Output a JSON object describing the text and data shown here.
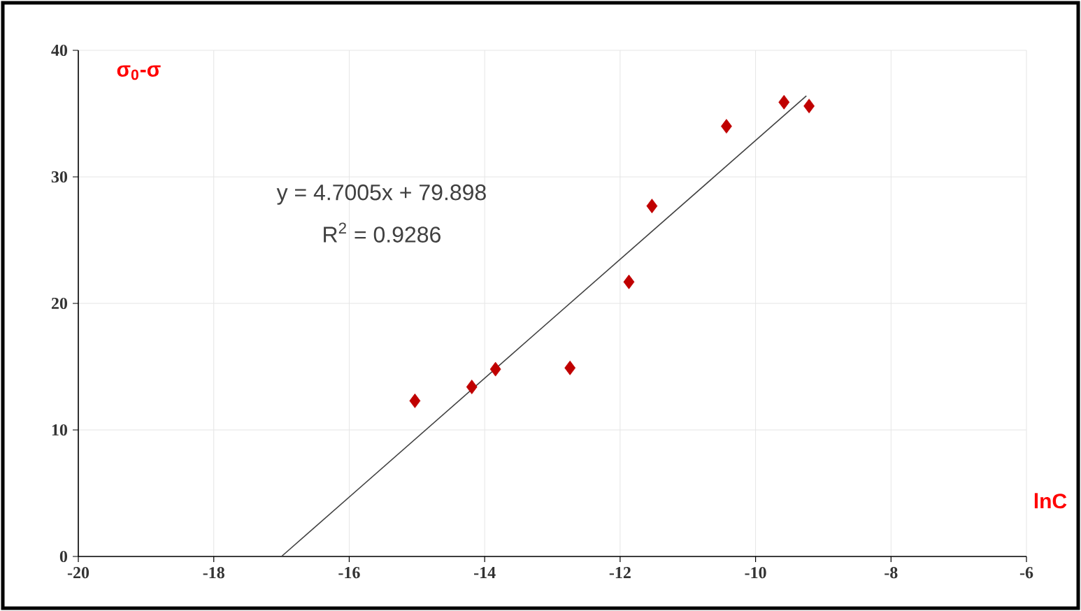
{
  "chart_data": {
    "type": "scatter",
    "xlabel": "lnC",
    "ylabel": "σ$_{0}$-σ",
    "annotations": [
      "y = 4.7005x + 79.898",
      "R$^{2}$ = 0.9286"
    ],
    "series": [
      {
        "color": "#c00000",
        "marker": "diamond",
        "x": [
          -15.03,
          -14.19,
          -13.84,
          -12.74,
          -11.87,
          -11.53,
          -10.43,
          -9.58,
          -9.21
        ],
        "values": [
          12.3,
          13.4,
          14.8,
          14.9,
          21.7,
          27.7,
          34.0,
          35.9,
          35.6
        ]
      },
      {
        "type": "line",
        "color": "#404040",
        "marker": "none",
        "line_style": "solid",
        "x": [
          -17,
          -9.25
        ],
        "values": [
          0,
          36.4
        ]
      }
    ],
    "xlim": [
      -20,
      -6
    ],
    "xticks": [
      -20,
      -18,
      -16,
      -14,
      -12,
      -10,
      -8,
      -6
    ],
    "ylim": [
      0,
      40
    ],
    "yticks": [
      0,
      10,
      20,
      30,
      40
    ],
    "grid": true
  }
}
